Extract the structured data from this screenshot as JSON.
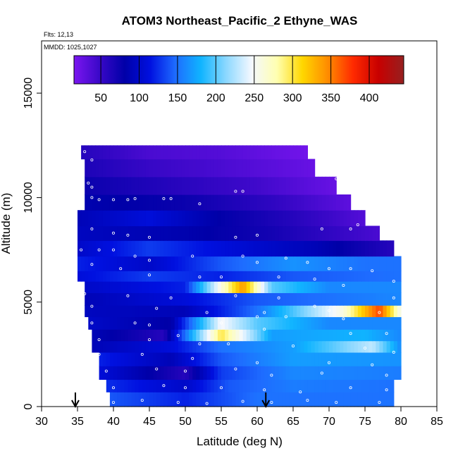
{
  "header": {
    "title": "ATOM3 Northeast_Pacific_2 Ethyne_WAS",
    "flights": "Flts: 12,13",
    "dates": "MMDD: 1025,1027"
  },
  "chart_data": {
    "type": "heatmap",
    "title": "ATOM3 Northeast_Pacific_2 Ethyne_WAS",
    "xlabel": "Latitude (deg N)",
    "ylabel": "Altitude (m)",
    "xlim": [
      30,
      85
    ],
    "ylim": [
      0,
      17500
    ],
    "x_ticks": [
      "30",
      "35",
      "40",
      "45",
      "50",
      "55",
      "60",
      "65",
      "70",
      "75",
      "80",
      "85"
    ],
    "y_ticks": [
      "0",
      "5000",
      "10000",
      "15000"
    ],
    "y_tick_values": [
      0,
      5000,
      10000,
      15000
    ],
    "colorbar": {
      "range": [
        15,
        445
      ],
      "ticks": [
        "50",
        "100",
        "150",
        "200",
        "250",
        "300",
        "350",
        "400"
      ],
      "tick_values": [
        50,
        100,
        150,
        200,
        250,
        300,
        350,
        400
      ],
      "colors": [
        "#7b16f0",
        "#3a08c8",
        "#0000a8",
        "#0010e0",
        "#1e6cff",
        "#10b4ff",
        "#8cd8ff",
        "#f4f8ff",
        "#ffffb0",
        "#ffd700",
        "#ff8c00",
        "#ff2a00",
        "#c80000",
        "#962020"
      ]
    },
    "layers": [
      {
        "altitude": 12200,
        "lat_start": 35.5,
        "lat_end": 67,
        "values": [
          [
            35.5,
            60
          ],
          [
            45,
            40
          ],
          [
            55,
            35
          ],
          [
            67,
            20
          ]
        ]
      },
      {
        "altitude": 11500,
        "lat_start": 36,
        "lat_end": 68,
        "values": [
          [
            36,
            65
          ],
          [
            45,
            50
          ],
          [
            55,
            40
          ],
          [
            68,
            25
          ]
        ]
      },
      {
        "altitude": 10500,
        "lat_start": 36,
        "lat_end": 71,
        "values": [
          [
            36,
            75
          ],
          [
            48,
            60
          ],
          [
            60,
            45
          ],
          [
            71,
            25
          ]
        ]
      },
      {
        "altitude": 9800,
        "lat_start": 36,
        "lat_end": 73,
        "values": [
          [
            36,
            85
          ],
          [
            50,
            75
          ],
          [
            62,
            55
          ],
          [
            73,
            30
          ]
        ]
      },
      {
        "altitude": 9000,
        "lat_start": 35,
        "lat_end": 75,
        "values": [
          [
            35,
            90
          ],
          [
            45,
            110
          ],
          [
            55,
            80
          ],
          [
            65,
            60
          ],
          [
            75,
            35
          ]
        ]
      },
      {
        "altitude": 8300,
        "lat_start": 35,
        "lat_end": 77,
        "values": [
          [
            35,
            95
          ],
          [
            50,
            85
          ],
          [
            62,
            70
          ],
          [
            77,
            40
          ]
        ]
      },
      {
        "altitude": 7600,
        "lat_start": 35,
        "lat_end": 79,
        "values": [
          [
            35,
            100
          ],
          [
            45,
            130
          ],
          [
            55,
            110
          ],
          [
            68,
            90
          ],
          [
            79,
            60
          ]
        ]
      },
      {
        "altitude": 6800,
        "lat_start": 35,
        "lat_end": 80,
        "values": [
          [
            35,
            120
          ],
          [
            45,
            100
          ],
          [
            55,
            140
          ],
          [
            65,
            165
          ],
          [
            75,
            150
          ],
          [
            80,
            150
          ]
        ]
      },
      {
        "altitude": 6200,
        "lat_start": 35,
        "lat_end": 80,
        "values": [
          [
            35,
            110
          ],
          [
            45,
            130
          ],
          [
            55,
            120
          ],
          [
            65,
            140
          ],
          [
            80,
            150
          ]
        ]
      },
      {
        "altitude": 5800,
        "lat_start": 36,
        "lat_end": 80,
        "values": [
          [
            36,
            100
          ],
          [
            50,
            120
          ],
          [
            55,
            260
          ],
          [
            58,
            340
          ],
          [
            62,
            200
          ],
          [
            70,
            160
          ],
          [
            80,
            160
          ]
        ]
      },
      {
        "altitude": 5100,
        "lat_start": 36,
        "lat_end": 80,
        "values": [
          [
            36,
            90
          ],
          [
            50,
            110
          ],
          [
            60,
            140
          ],
          [
            70,
            150
          ],
          [
            80,
            160
          ]
        ]
      },
      {
        "altitude": 4600,
        "lat_start": 36,
        "lat_end": 80,
        "values": [
          [
            36,
            95
          ],
          [
            50,
            90
          ],
          [
            60,
            150
          ],
          [
            72,
            260
          ],
          [
            77,
            370
          ],
          [
            80,
            250
          ]
        ]
      },
      {
        "altitude": 4000,
        "lat_start": 36.5,
        "lat_end": 80,
        "values": [
          [
            36.5,
            100
          ],
          [
            48,
            80
          ],
          [
            55,
            250
          ],
          [
            60,
            200
          ],
          [
            70,
            160
          ],
          [
            80,
            160
          ]
        ]
      },
      {
        "altitude": 3400,
        "lat_start": 37,
        "lat_end": 80,
        "values": [
          [
            37,
            90
          ],
          [
            47,
            60
          ],
          [
            55,
            300
          ],
          [
            62,
            170
          ],
          [
            75,
            180
          ],
          [
            80,
            160
          ]
        ]
      },
      {
        "altitude": 2900,
        "lat_start": 37,
        "lat_end": 80,
        "values": [
          [
            37,
            90
          ],
          [
            48,
            110
          ],
          [
            55,
            150
          ],
          [
            65,
            170
          ],
          [
            76,
            230
          ],
          [
            80,
            160
          ]
        ]
      },
      {
        "altitude": 2300,
        "lat_start": 38,
        "lat_end": 80,
        "values": [
          [
            38,
            120
          ],
          [
            48,
            90
          ],
          [
            55,
            140
          ],
          [
            65,
            170
          ],
          [
            80,
            165
          ]
        ]
      },
      {
        "altitude": 1600,
        "lat_start": 38,
        "lat_end": 80,
        "values": [
          [
            38,
            110
          ],
          [
            50,
            60
          ],
          [
            55,
            130
          ],
          [
            65,
            160
          ],
          [
            80,
            155
          ]
        ]
      },
      {
        "altitude": 1000,
        "lat_start": 39,
        "lat_end": 79,
        "values": [
          [
            39,
            125
          ],
          [
            50,
            100
          ],
          [
            56,
            140
          ],
          [
            65,
            155
          ],
          [
            79,
            150
          ]
        ]
      },
      {
        "altitude": 400,
        "lat_start": 39.5,
        "lat_end": 79,
        "values": [
          [
            39.5,
            140
          ],
          [
            50,
            120
          ],
          [
            60,
            150
          ],
          [
            79,
            150
          ]
        ]
      }
    ],
    "samples": [
      [
        36,
        12200
      ],
      [
        37,
        11800
      ],
      [
        36.5,
        10700
      ],
      [
        37,
        10500
      ],
      [
        37,
        10000
      ],
      [
        38,
        9900
      ],
      [
        40,
        9900
      ],
      [
        42,
        9900
      ],
      [
        43,
        9950
      ],
      [
        47,
        9950
      ],
      [
        48,
        9950
      ],
      [
        52,
        9700
      ],
      [
        57,
        10300
      ],
      [
        58,
        10300
      ],
      [
        69,
        11500
      ],
      [
        70,
        11400
      ],
      [
        71,
        10900
      ],
      [
        74,
        10200
      ],
      [
        75,
        9500
      ],
      [
        76,
        9300
      ],
      [
        74,
        8700
      ],
      [
        73,
        8500
      ],
      [
        69,
        8500
      ],
      [
        60,
        8200
      ],
      [
        57,
        8100
      ],
      [
        45,
        8100
      ],
      [
        42,
        8200
      ],
      [
        40,
        8300
      ],
      [
        37,
        8500
      ],
      [
        35.5,
        7500
      ],
      [
        38,
        7500
      ],
      [
        40,
        7500
      ],
      [
        43,
        7200
      ],
      [
        45,
        7000
      ],
      [
        51,
        7200
      ],
      [
        58,
        7200
      ],
      [
        60,
        6900
      ],
      [
        64,
        7100
      ],
      [
        67,
        6900
      ],
      [
        70,
        6600
      ],
      [
        73,
        6600
      ],
      [
        76,
        6500
      ],
      [
        79,
        6000
      ],
      [
        37,
        6800
      ],
      [
        41,
        6600
      ],
      [
        45,
        6300
      ],
      [
        52,
        6200
      ],
      [
        55,
        6200
      ],
      [
        63,
        6200
      ],
      [
        68,
        6100
      ],
      [
        72,
        5800
      ],
      [
        36,
        5400
      ],
      [
        42,
        5300
      ],
      [
        48,
        5200
      ],
      [
        57,
        5300
      ],
      [
        63,
        5200
      ],
      [
        68,
        4800
      ],
      [
        70,
        4600
      ],
      [
        77,
        4500
      ],
      [
        79,
        5200
      ],
      [
        37,
        4800
      ],
      [
        46,
        4700
      ],
      [
        53,
        4500
      ],
      [
        60,
        4300
      ],
      [
        61,
        4500
      ],
      [
        64,
        4300
      ],
      [
        72,
        4200
      ],
      [
        37,
        4000
      ],
      [
        43,
        4000
      ],
      [
        45,
        3900
      ],
      [
        55,
        4000
      ],
      [
        61,
        3700
      ],
      [
        73,
        3500
      ],
      [
        78,
        3500
      ],
      [
        38,
        3200
      ],
      [
        45,
        3200
      ],
      [
        49,
        3400
      ],
      [
        52,
        3000
      ],
      [
        56,
        3000
      ],
      [
        65,
        2900
      ],
      [
        75,
        2800
      ],
      [
        79,
        2600
      ],
      [
        38,
        2500
      ],
      [
        44,
        2500
      ],
      [
        51,
        2300
      ],
      [
        60,
        2100
      ],
      [
        70,
        2100
      ],
      [
        76,
        2000
      ],
      [
        39,
        1700
      ],
      [
        46,
        1800
      ],
      [
        50,
        1700
      ],
      [
        57,
        1800
      ],
      [
        62,
        1500
      ],
      [
        69,
        1600
      ],
      [
        78,
        1500
      ],
      [
        40,
        900
      ],
      [
        47,
        1000
      ],
      [
        50,
        900
      ],
      [
        55,
        900
      ],
      [
        61,
        800
      ],
      [
        66,
        700
      ],
      [
        73,
        900
      ],
      [
        78,
        800
      ],
      [
        40,
        200
      ],
      [
        44,
        300
      ],
      [
        49,
        200
      ],
      [
        53,
        150
      ],
      [
        58,
        250
      ],
      [
        62,
        200
      ],
      [
        67,
        300
      ],
      [
        71,
        200
      ],
      [
        77,
        200
      ]
    ],
    "markers": [
      {
        "latitude": 34.7,
        "symbol": "down-arrow"
      },
      {
        "latitude": 61.2,
        "symbol": "down-arrow"
      }
    ]
  }
}
